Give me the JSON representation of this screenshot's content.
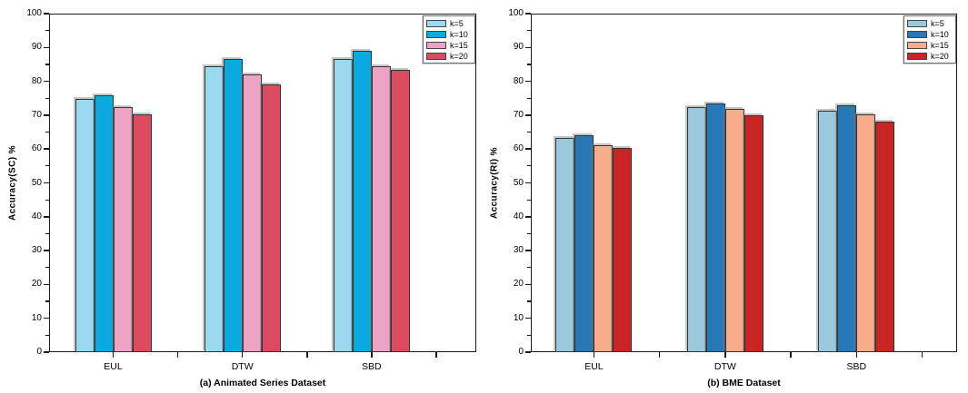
{
  "figure": {
    "background": "#ffffff",
    "axis_color": "#1a1a1a"
  },
  "chart_data": [
    {
      "type": "bar",
      "caption": "(a) Animated Series Dataset",
      "ylabel": "Accuracy(SC) %",
      "xlabel": "",
      "categories": [
        "EUL",
        "DTW",
        "SBD"
      ],
      "ylim": [
        0,
        100
      ],
      "yticks": [
        0,
        10,
        20,
        30,
        40,
        50,
        60,
        70,
        80,
        90,
        100
      ],
      "ytick_minor_step": 5,
      "grid": false,
      "legend_position": "top-right",
      "bar_edge_color": "#333333",
      "series": [
        {
          "name": "k=5",
          "color": "#9BD9F0",
          "values": [
            74.8,
            84.4,
            86.6
          ]
        },
        {
          "name": "k=10",
          "color": "#0AA9E0",
          "values": [
            76.0,
            86.5,
            89.1
          ]
        },
        {
          "name": "k=15",
          "color": "#ECA3C4",
          "values": [
            72.3,
            82.1,
            84.5
          ]
        },
        {
          "name": "k=20",
          "color": "#DB4A5F",
          "values": [
            70.2,
            79.2,
            83.3
          ]
        }
      ]
    },
    {
      "type": "bar",
      "caption": "(b) BME Dataset",
      "ylabel": "Accuracy(RI) %",
      "xlabel": "",
      "categories": [
        "EUL",
        "DTW",
        "SBD"
      ],
      "ylim": [
        0,
        100
      ],
      "yticks": [
        0,
        10,
        20,
        30,
        40,
        50,
        60,
        70,
        80,
        90,
        100
      ],
      "ytick_minor_step": 5,
      "grid": false,
      "legend_position": "top-right",
      "bar_edge_color": "#333333",
      "series": [
        {
          "name": "k=5",
          "color": "#9AC9DB",
          "values": [
            63.4,
            72.5,
            71.2
          ]
        },
        {
          "name": "k=10",
          "color": "#2878B5",
          "values": [
            64.2,
            73.4,
            72.8
          ]
        },
        {
          "name": "k=15",
          "color": "#F8AC8C",
          "values": [
            61.0,
            71.9,
            70.2
          ]
        },
        {
          "name": "k=20",
          "color": "#C82423",
          "values": [
            60.2,
            70.0,
            68.0
          ]
        }
      ]
    }
  ]
}
